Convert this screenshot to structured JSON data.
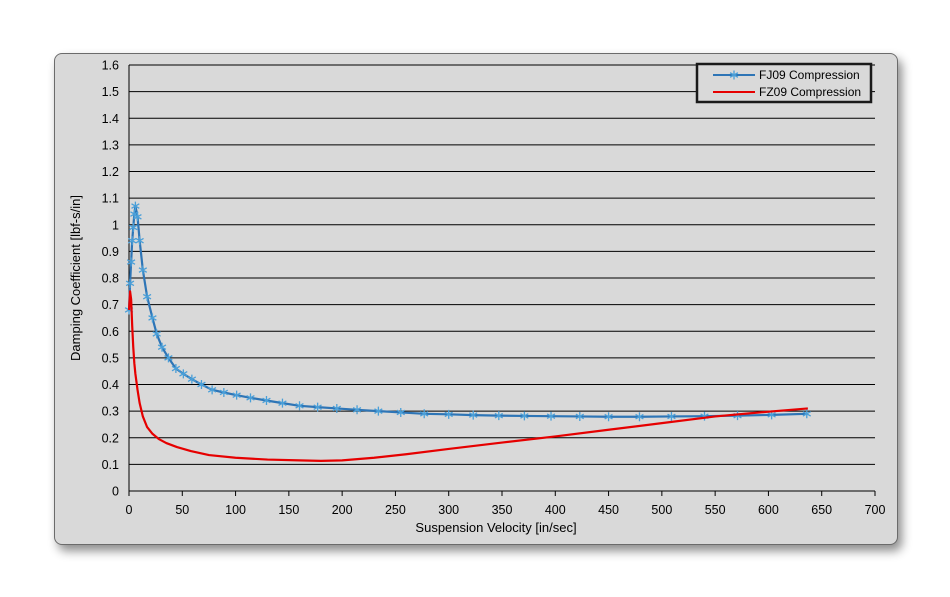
{
  "chart_data": {
    "type": "line",
    "title": "",
    "xlabel": "Suspension Velocity [in/sec]",
    "ylabel": "Damping Coefficient  [lbf-s/in]",
    "xlim": [
      0,
      700
    ],
    "ylim": [
      0,
      1.6
    ],
    "xticks": [
      "0",
      "50",
      "100",
      "150",
      "200",
      "250",
      "300",
      "350",
      "400",
      "450",
      "500",
      "550",
      "600",
      "650",
      "700"
    ],
    "yticks": [
      "0",
      "0.1",
      "0.2",
      "0.3",
      "0.4",
      "0.5",
      "0.6",
      "0.7",
      "0.8",
      "0.9",
      "1",
      "1.1",
      "1.2",
      "1.3",
      "1.4",
      "1.5",
      "1.6"
    ],
    "grid": true,
    "legend_position": "top-right",
    "series": [
      {
        "name": "FJ09 Compression",
        "color": "#2e75b6",
        "marker_color": "#4a9fd8",
        "marker": "star",
        "x": [
          0,
          1,
          2,
          3,
          4,
          5,
          6,
          8,
          10,
          13,
          17,
          22,
          26,
          31,
          37,
          44,
          51,
          59,
          68,
          78,
          89,
          101,
          114,
          129,
          144,
          160,
          177,
          195,
          214,
          234,
          255,
          277,
          300,
          323,
          347,
          371,
          396,
          423,
          450,
          479,
          509,
          540,
          571,
          603,
          636
        ],
        "y": [
          0.68,
          0.78,
          0.86,
          0.94,
          0.99,
          1.04,
          1.07,
          1.03,
          0.94,
          0.83,
          0.73,
          0.65,
          0.59,
          0.54,
          0.5,
          0.46,
          0.44,
          0.42,
          0.4,
          0.38,
          0.37,
          0.36,
          0.35,
          0.34,
          0.33,
          0.32,
          0.315,
          0.31,
          0.305,
          0.3,
          0.295,
          0.29,
          0.288,
          0.285,
          0.283,
          0.282,
          0.281,
          0.28,
          0.279,
          0.279,
          0.28,
          0.281,
          0.283,
          0.286,
          0.29
        ]
      },
      {
        "name": "FZ09 Compression",
        "color": "#e60000",
        "x": [
          0,
          1,
          2,
          3,
          4,
          5,
          6,
          8,
          10,
          13,
          17,
          22,
          28,
          35,
          45,
          58,
          75,
          100,
          130,
          160,
          180,
          200,
          230,
          260,
          300,
          350,
          400,
          450,
          500,
          550,
          600,
          637
        ],
        "y": [
          0.68,
          0.75,
          0.72,
          0.62,
          0.54,
          0.48,
          0.44,
          0.38,
          0.33,
          0.28,
          0.24,
          0.215,
          0.195,
          0.18,
          0.165,
          0.15,
          0.135,
          0.125,
          0.118,
          0.115,
          0.113,
          0.115,
          0.125,
          0.138,
          0.158,
          0.182,
          0.205,
          0.23,
          0.255,
          0.28,
          0.298,
          0.31
        ]
      }
    ]
  }
}
